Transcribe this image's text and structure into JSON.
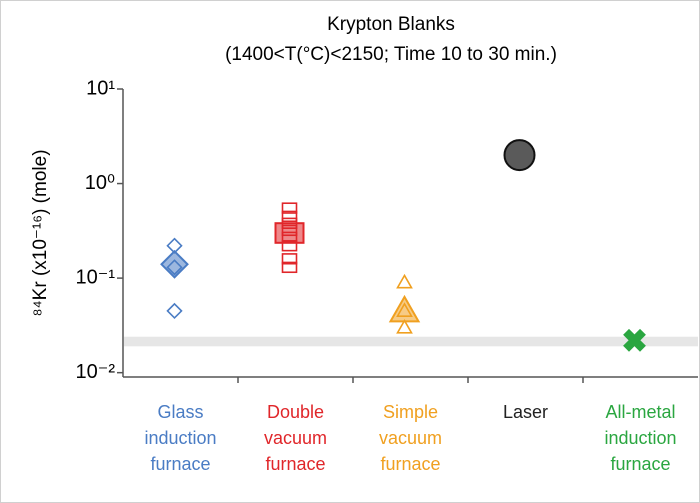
{
  "chart_data": {
    "type": "scatter",
    "title": "Krypton Blanks",
    "subtitle": "(1400<T(°C)<2150; Time 10 to 30 min.)",
    "y_label": "⁸⁴Kr (x10⁻¹⁶) (mole)",
    "log_y": true,
    "ylim": [
      0.009,
      10
    ],
    "yticks": [
      {
        "value": 0.01,
        "label": "10⁻²"
      },
      {
        "value": 0.1,
        "label": "10⁻¹"
      },
      {
        "value": 1,
        "label": "10⁰"
      },
      {
        "value": 10,
        "label": "10¹"
      }
    ],
    "band": [
      0.019,
      0.024
    ],
    "band_color": "#e6e6e6",
    "series": [
      {
        "name": "Glass induction furnace",
        "color": "#4a7cc4",
        "marker": "diamond",
        "values": [
          0.22,
          0.13,
          0.045
        ],
        "mean": 0.14
      },
      {
        "name": "Double vacuum furnace",
        "color": "#e0262a",
        "marker": "square",
        "values": [
          0.55,
          0.45,
          0.38,
          0.32,
          0.27,
          0.22,
          0.16,
          0.13
        ],
        "mean": 0.3
      },
      {
        "name": "Simple vacuum furnace",
        "color": "#f0a020",
        "marker": "triangle",
        "values": [
          0.09,
          0.045,
          0.03
        ],
        "mean": 0.045
      },
      {
        "name": "Laser",
        "color": "#222222",
        "marker": "circle",
        "values": [],
        "mean": 2.0
      },
      {
        "name": "All-metal induction furnace",
        "color": "#2aa640",
        "marker": "cross",
        "values": [],
        "mean": 0.022
      }
    ]
  }
}
